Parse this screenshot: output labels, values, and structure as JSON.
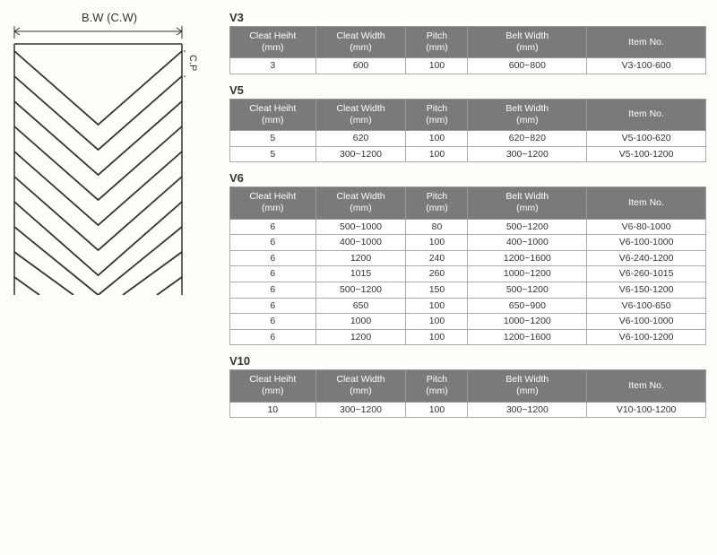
{
  "diagram": {
    "top_label": "B.W (C.W)",
    "side_label": "C.P",
    "stroke": "#333333",
    "bg": "#fdfdf9"
  },
  "headers": {
    "cleat_height": "Cleat Heiht (mm)",
    "cleat_width": "Cleat Width (mm)",
    "pitch": "Pitch (mm)",
    "belt_width": "Belt Width (mm)",
    "item_no": "Item No."
  },
  "style": {
    "header_bg": "#7a7a7a",
    "header_fg": "#ffffff",
    "cell_border": "#aaaaaa",
    "font_size_header": 10.5,
    "font_size_cell": 10.5
  },
  "sections": [
    {
      "title": "V3",
      "rows": [
        {
          "ch": "3",
          "cw": "600",
          "p": "100",
          "bw": "600~800",
          "item": "V3-100-600"
        }
      ]
    },
    {
      "title": "V5",
      "rows": [
        {
          "ch": "5",
          "cw": "620",
          "p": "100",
          "bw": "620~820",
          "item": "V5-100-620"
        },
        {
          "ch": "5",
          "cw": "300~1200",
          "p": "100",
          "bw": "300~1200",
          "item": "V5-100-1200"
        }
      ]
    },
    {
      "title": "V6",
      "rows": [
        {
          "ch": "6",
          "cw": "500~1000",
          "p": "80",
          "bw": "500~1200",
          "item": "V6-80-1000"
        },
        {
          "ch": "6",
          "cw": "400~1000",
          "p": "100",
          "bw": "400~1000",
          "item": "V6-100-1000"
        },
        {
          "ch": "6",
          "cw": "1200",
          "p": "240",
          "bw": "1200~1600",
          "item": "V6-240-1200"
        },
        {
          "ch": "6",
          "cw": "1015",
          "p": "260",
          "bw": "1000~1200",
          "item": "V6-260-1015"
        },
        {
          "ch": "6",
          "cw": "500~1200",
          "p": "150",
          "bw": "500~1200",
          "item": "V6-150-1200"
        },
        {
          "ch": "6",
          "cw": "650",
          "p": "100",
          "bw": "650~900",
          "item": "V6-100-650"
        },
        {
          "ch": "6",
          "cw": "1000",
          "p": "100",
          "bw": "1000~1200",
          "item": "V6-100-1000"
        },
        {
          "ch": "6",
          "cw": "1200",
          "p": "100",
          "bw": "1200~1600",
          "item": "V6-100-1200"
        }
      ]
    },
    {
      "title": "V10",
      "rows": [
        {
          "ch": "10",
          "cw": "300~1200",
          "p": "100",
          "bw": "300~1200",
          "item": "V10-100-1200"
        }
      ]
    }
  ]
}
